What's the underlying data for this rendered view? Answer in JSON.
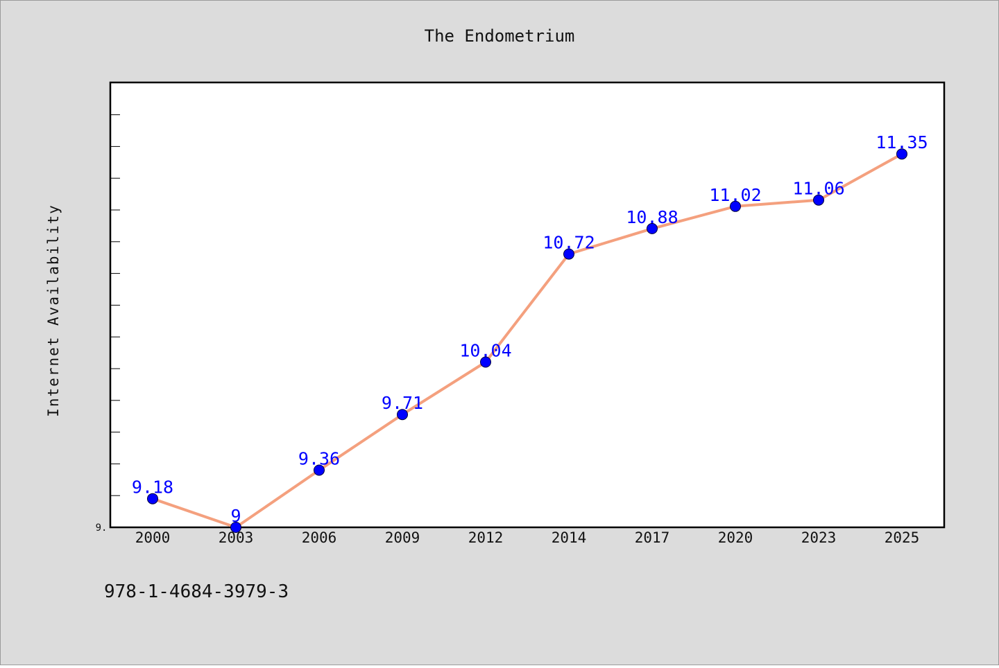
{
  "chart_data": {
    "type": "line",
    "title": "The Endometrium",
    "xlabel": "",
    "ylabel": "Internet Availability",
    "categories": [
      "2000",
      "2003",
      "2006",
      "2009",
      "2012",
      "2014",
      "2017",
      "2020",
      "2023",
      "2025"
    ],
    "series": [
      {
        "values": [
          9.18,
          9,
          9.36,
          9.71,
          10.04,
          10.72,
          10.88,
          11.02,
          11.06,
          11.35
        ],
        "data_labels": [
          "9.18",
          "9",
          "9.36",
          "9.71",
          "10.04",
          "10.72",
          "10.88",
          "11.02",
          "11.06",
          "11.35"
        ]
      }
    ],
    "ylim": [
      9,
      11.8
    ],
    "ytick_label": "9.",
    "grid": false,
    "legend": "none",
    "colors": {
      "line": "#f4a07e",
      "marker": "#0000ff",
      "data_label": "#0000ff",
      "background": "#dcdcdc",
      "plot_area": "#ffffff"
    }
  },
  "caption": "978-1-4684-3979-3"
}
